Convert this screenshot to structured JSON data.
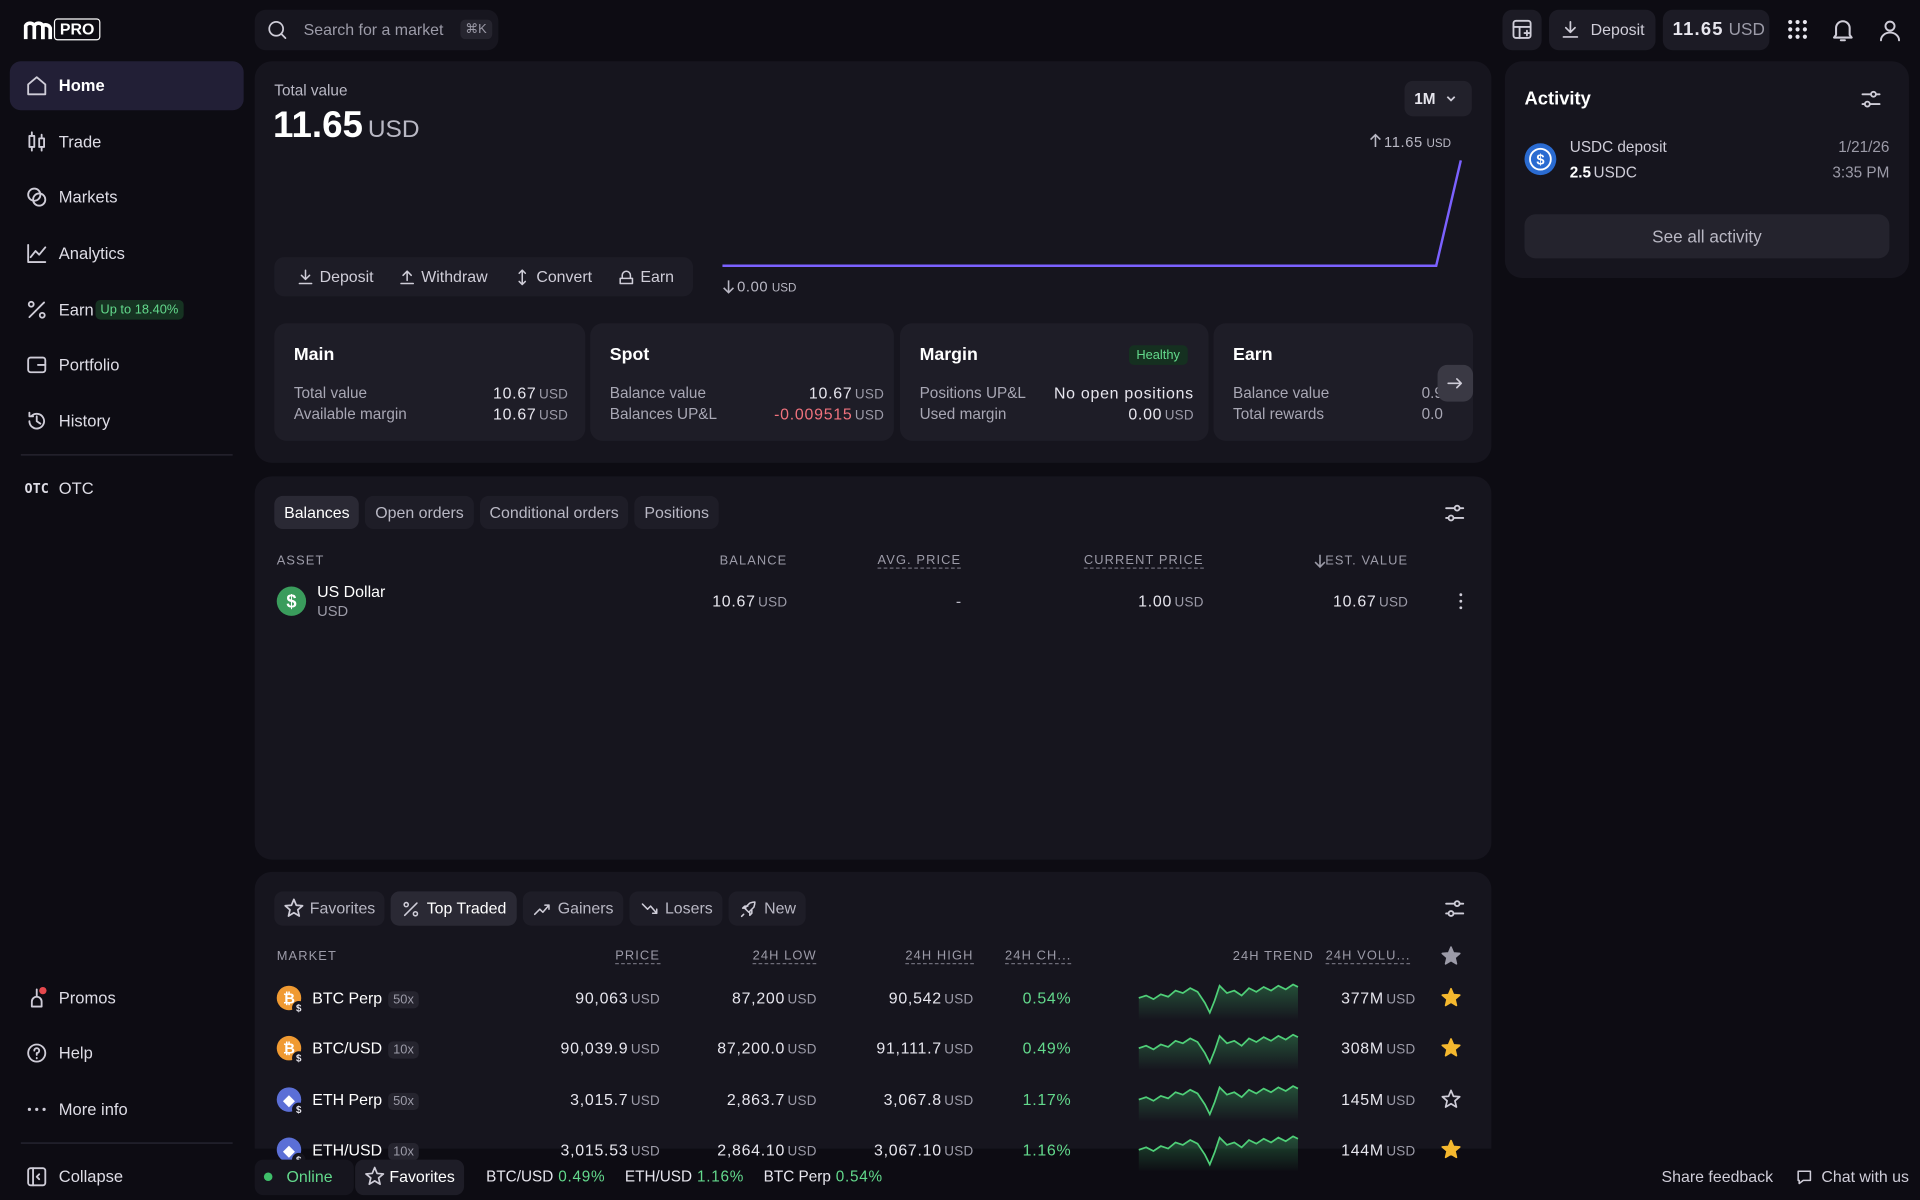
{
  "sidebar": {
    "logo": "PRO",
    "nav": [
      {
        "label": "Home"
      },
      {
        "label": "Trade"
      },
      {
        "label": "Markets"
      },
      {
        "label": "Analytics"
      },
      {
        "label": "Earn",
        "badge": "Up to 18.40%"
      },
      {
        "label": "Portfolio"
      },
      {
        "label": "History"
      }
    ],
    "otc": {
      "icon": "OTC",
      "label": "OTC"
    },
    "bottom": [
      "Promos",
      "Help",
      "More info",
      "Collapse"
    ]
  },
  "topbar": {
    "search": "Search for a market",
    "shortcut": "⌘K",
    "deposit": "Deposit",
    "balance": "11.65",
    "balance_unit": "USD"
  },
  "total": {
    "label": "Total value",
    "value": "11.65",
    "unit": "USD",
    "range": "1M",
    "max": "11.65",
    "max_unit": "USD",
    "min": "0.00",
    "min_unit": "USD",
    "actions": [
      "Deposit",
      "Withdraw",
      "Convert",
      "Earn"
    ],
    "chart": {
      "values": [
        0,
        0,
        0,
        0,
        0,
        0,
        0,
        0,
        0,
        0,
        0,
        0,
        0,
        0,
        0,
        0,
        0,
        0,
        0,
        0,
        0,
        0,
        0,
        0,
        0,
        0,
        0,
        0,
        0,
        0,
        11.65
      ]
    }
  },
  "accounts": [
    {
      "title": "Main",
      "rows": [
        {
          "label": "Total value",
          "value": "10.67",
          "unit": "USD"
        },
        {
          "label": "Available margin",
          "value": "10.67",
          "unit": "USD"
        }
      ]
    },
    {
      "title": "Spot",
      "rows": [
        {
          "label": "Balance value",
          "value": "10.67",
          "unit": "USD"
        },
        {
          "label": "Balances UP&L",
          "value": "-0.009515",
          "unit": "USD"
        }
      ]
    },
    {
      "title": "Margin",
      "badge": "Healthy",
      "rows": [
        {
          "label": "Positions UP&L",
          "value": "No open positions"
        },
        {
          "label": "Used margin",
          "value": "0.00",
          "unit": "USD"
        }
      ]
    },
    {
      "title": "Earn",
      "rows": [
        {
          "label": "Balance value",
          "value": "0.9"
        },
        {
          "label": "Total rewards",
          "value": "0.0"
        }
      ]
    }
  ],
  "balances": {
    "tabs": [
      "Balances",
      "Open orders",
      "Conditional orders",
      "Positions"
    ],
    "columns": [
      "ASSET",
      "BALANCE",
      "AVG. PRICE",
      "CURRENT PRICE",
      "EST. VALUE"
    ],
    "unit": "USD",
    "rows": [
      {
        "name": "US Dollar",
        "code": "USD",
        "balance": "10.67",
        "avg": "-",
        "current": "1.00",
        "est": "10.67"
      }
    ]
  },
  "markets": {
    "tabs": [
      "Favorites",
      "Top Traded",
      "Gainers",
      "Losers",
      "New"
    ],
    "columns": [
      "MARKET",
      "PRICE",
      "24H LOW",
      "24H HIGH",
      "24H CH...",
      "24H TREND",
      "24H VOLU..."
    ],
    "unit": "USD",
    "rows": [
      {
        "name": "BTC Perp",
        "leverage": "50x",
        "price": "90,063",
        "low": "87,200",
        "high": "90,542",
        "change": "0.54%",
        "volume": "377M",
        "favorite": true
      },
      {
        "name": "BTC/USD",
        "leverage": "10x",
        "price": "90,039.9",
        "low": "87,200.0",
        "high": "91,111.7",
        "change": "0.49%",
        "volume": "308M",
        "favorite": true
      },
      {
        "name": "ETH Perp",
        "leverage": "50x",
        "price": "3,015.7",
        "low": "2,863.7",
        "high": "3,067.8",
        "change": "1.17%",
        "volume": "145M",
        "favorite": false
      },
      {
        "name": "ETH/USD",
        "leverage": "10x",
        "price": "3,015.53",
        "low": "2,864.10",
        "high": "3,067.10",
        "change": "1.16%",
        "volume": "144M",
        "favorite": true
      }
    ]
  },
  "activity": {
    "title": "Activity",
    "items": [
      {
        "title": "USDC deposit",
        "amount": "2.5",
        "unit": "USDC",
        "date": "1/21/26",
        "time": "3:35 PM"
      }
    ],
    "button": "See all activity"
  },
  "footer": {
    "status": "Online",
    "favorites": "Favorites",
    "tickers": [
      {
        "pair": "BTC/USD",
        "change": "0.49%"
      },
      {
        "pair": "ETH/USD",
        "change": "1.16%"
      },
      {
        "pair": "BTC Perp",
        "change": "0.54%"
      }
    ],
    "feedback": "Share feedback",
    "chat": "Chat with us"
  }
}
